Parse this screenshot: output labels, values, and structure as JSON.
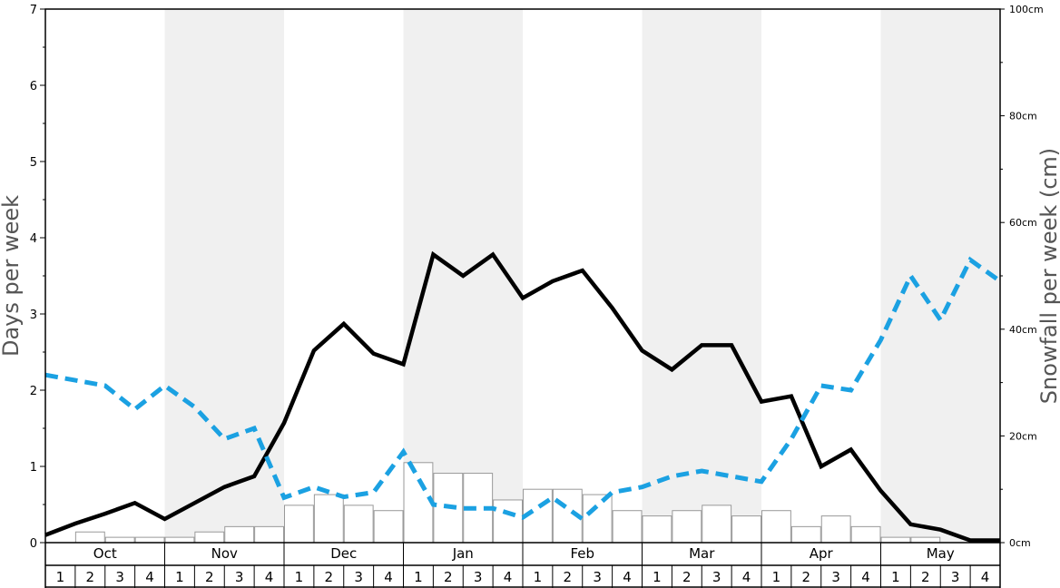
{
  "chart_data": {
    "type": "bar+line",
    "y_left": {
      "label": "Days per week",
      "range": [
        0,
        7
      ],
      "ticks": [
        0,
        1,
        2,
        3,
        4,
        5,
        6,
        7
      ]
    },
    "y_right": {
      "label": "Snowfall per week (cm)",
      "range": [
        0,
        100
      ],
      "ticks": [
        "0cm",
        "20cm",
        "40cm",
        "60cm",
        "80cm",
        "100cm"
      ],
      "tick_values": [
        0,
        20,
        40,
        60,
        80,
        100
      ]
    },
    "months": [
      "Oct",
      "Nov",
      "Dec",
      "Jan",
      "Feb",
      "Mar",
      "Apr",
      "May"
    ],
    "weeks": [
      "1",
      "2",
      "3",
      "4"
    ],
    "shaded_months": [
      "Nov",
      "Jan",
      "Mar",
      "May"
    ],
    "colors": {
      "shade": "#f0f0f0",
      "bar_fill": "#ffffff",
      "bar_stroke": "#999999",
      "line_solid": "#000000",
      "line_dashed": "#1ba1e2"
    },
    "series": [
      {
        "type": "bar",
        "axis": "right",
        "values": [
          0,
          2,
          1,
          1,
          1,
          2,
          3,
          3,
          7,
          9,
          7,
          6,
          15,
          13,
          13,
          8,
          10,
          10,
          9,
          6,
          5,
          6,
          7,
          5,
          6,
          3,
          5,
          3,
          1,
          1,
          0,
          0
        ]
      },
      {
        "type": "line",
        "style": "solid",
        "axis": "left",
        "values": [
          0.1,
          0.25,
          0.38,
          0.52,
          0.31,
          0.52,
          0.73,
          0.87,
          1.57,
          2.52,
          2.87,
          2.48,
          2.34,
          3.78,
          3.5,
          3.78,
          3.21,
          3.43,
          3.57,
          3.08,
          2.52,
          2.27,
          2.59,
          2.59,
          1.85,
          1.92,
          1.0,
          1.22,
          0.68,
          0.24,
          0.17,
          0.03,
          0.03
        ]
      },
      {
        "type": "line",
        "style": "dashed",
        "axis": "left",
        "values": [
          2.2,
          2.13,
          2.06,
          1.75,
          2.06,
          1.78,
          1.36,
          1.5,
          0.59,
          0.73,
          0.6,
          0.66,
          1.19,
          0.5,
          0.45,
          0.45,
          0.33,
          0.59,
          0.31,
          0.66,
          0.73,
          0.87,
          0.94,
          0.87,
          0.8,
          1.36,
          2.06,
          2.0,
          2.66,
          3.5,
          2.92,
          3.71,
          3.43
        ]
      }
    ]
  }
}
